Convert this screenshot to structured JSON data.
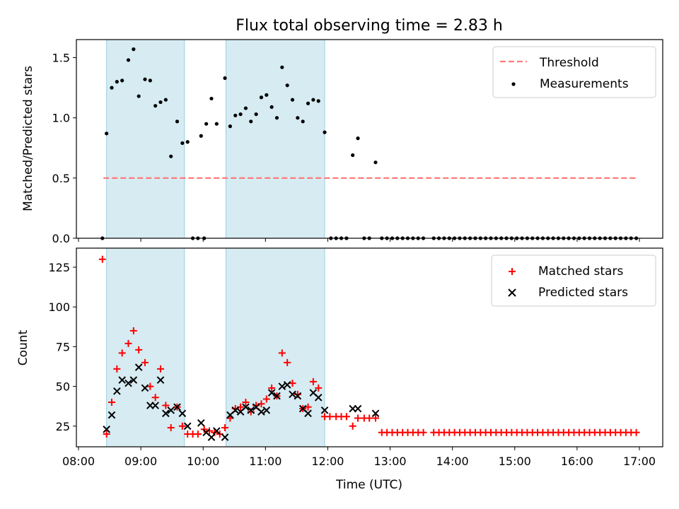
{
  "chart_data": [
    {
      "type": "scatter",
      "title": "Flux total observing time = 2.83 h",
      "xlabel": "",
      "ylabel": "Matched/Predicted stars",
      "xlim": [
        "08:00",
        "17:00"
      ],
      "ylim": [
        0,
        1.65
      ],
      "yticks": [
        0.0,
        0.5,
        1.0,
        1.5
      ],
      "ytick_labels": [
        "0.0",
        "0.5",
        "1.0",
        "1.5"
      ],
      "legend_position": "top-right",
      "grid": false,
      "shaded_intervals": [
        [
          "08:27",
          "09:42"
        ],
        [
          "10:22",
          "11:57"
        ]
      ],
      "threshold": {
        "name": "Threshold",
        "value": 0.5,
        "x_range": [
          "08:24",
          "16:58"
        ],
        "color": "#ff7b7b"
      },
      "series": [
        {
          "name": "Measurements",
          "color": "#000000",
          "points": [
            [
              "08:23",
              0.0
            ],
            [
              "08:27",
              0.87
            ],
            [
              "08:32",
              1.25
            ],
            [
              "08:37",
              1.3
            ],
            [
              "08:42",
              1.31
            ],
            [
              "08:48",
              1.48
            ],
            [
              "08:53",
              1.57
            ],
            [
              "08:58",
              1.18
            ],
            [
              "09:04",
              1.32
            ],
            [
              "09:09",
              1.31
            ],
            [
              "09:14",
              1.1
            ],
            [
              "09:19",
              1.13
            ],
            [
              "09:24",
              1.15
            ],
            [
              "09:29",
              0.68
            ],
            [
              "09:35",
              0.97
            ],
            [
              "09:40",
              0.79
            ],
            [
              "09:45",
              0.8
            ],
            [
              "09:50",
              0.0
            ],
            [
              "09:55",
              0.0
            ],
            [
              "10:01",
              0.0
            ],
            [
              "09:58",
              0.85
            ],
            [
              "10:03",
              0.95
            ],
            [
              "10:08",
              1.16
            ],
            [
              "10:13",
              0.95
            ],
            [
              "10:21",
              1.33
            ],
            [
              "10:26",
              0.93
            ],
            [
              "10:31",
              1.02
            ],
            [
              "10:36",
              1.03
            ],
            [
              "10:41",
              1.08
            ],
            [
              "10:46",
              0.97
            ],
            [
              "10:51",
              1.03
            ],
            [
              "10:56",
              1.17
            ],
            [
              "11:01",
              1.19
            ],
            [
              "11:06",
              1.09
            ],
            [
              "11:11",
              1.0
            ],
            [
              "11:16",
              1.42
            ],
            [
              "11:21",
              1.27
            ],
            [
              "11:26",
              1.15
            ],
            [
              "11:31",
              1.0
            ],
            [
              "11:36",
              0.97
            ],
            [
              "11:41",
              1.12
            ],
            [
              "11:46",
              1.15
            ],
            [
              "11:51",
              1.14
            ],
            [
              "11:57",
              0.88
            ],
            [
              "12:03",
              0.0
            ],
            [
              "12:08",
              0.0
            ],
            [
              "12:13",
              0.0
            ],
            [
              "12:18",
              0.0
            ],
            [
              "12:24",
              0.69
            ],
            [
              "12:29",
              0.83
            ],
            [
              "12:35",
              0.0
            ],
            [
              "12:40",
              0.0
            ],
            [
              "12:46",
              0.63
            ],
            [
              "12:52",
              0.0
            ],
            [
              "12:57",
              0.0
            ],
            [
              "13:02",
              0.0
            ],
            [
              "13:07",
              0.0
            ],
            [
              "13:12",
              0.0
            ],
            [
              "13:17",
              0.0
            ],
            [
              "13:22",
              0.0
            ],
            [
              "13:27",
              0.0
            ],
            [
              "13:32",
              0.0
            ],
            [
              "13:42",
              0.0
            ],
            [
              "13:47",
              0.0
            ],
            [
              "13:52",
              0.0
            ],
            [
              "13:57",
              0.0
            ],
            [
              "14:02",
              0.0
            ],
            [
              "14:07",
              0.0
            ],
            [
              "14:12",
              0.0
            ],
            [
              "14:17",
              0.0
            ],
            [
              "14:22",
              0.0
            ],
            [
              "14:27",
              0.0
            ],
            [
              "14:32",
              0.0
            ],
            [
              "14:37",
              0.0
            ],
            [
              "14:42",
              0.0
            ],
            [
              "14:47",
              0.0
            ],
            [
              "14:52",
              0.0
            ],
            [
              "14:57",
              0.0
            ],
            [
              "15:02",
              0.0
            ],
            [
              "15:07",
              0.0
            ],
            [
              "15:12",
              0.0
            ],
            [
              "15:17",
              0.0
            ],
            [
              "15:22",
              0.0
            ],
            [
              "15:27",
              0.0
            ],
            [
              "15:32",
              0.0
            ],
            [
              "15:37",
              0.0
            ],
            [
              "15:42",
              0.0
            ],
            [
              "15:47",
              0.0
            ],
            [
              "15:52",
              0.0
            ],
            [
              "15:57",
              0.0
            ],
            [
              "16:02",
              0.0
            ],
            [
              "16:07",
              0.0
            ],
            [
              "16:12",
              0.0
            ],
            [
              "16:17",
              0.0
            ],
            [
              "16:22",
              0.0
            ],
            [
              "16:27",
              0.0
            ],
            [
              "16:32",
              0.0
            ],
            [
              "16:37",
              0.0
            ],
            [
              "16:42",
              0.0
            ],
            [
              "16:47",
              0.0
            ],
            [
              "16:52",
              0.0
            ],
            [
              "16:57",
              0.0
            ]
          ]
        }
      ]
    },
    {
      "type": "scatter",
      "title": "",
      "xlabel": "Time (UTC)",
      "ylabel": "Count",
      "xlim": [
        "08:00",
        "17:00"
      ],
      "ylim": [
        12,
        137
      ],
      "yticks": [
        25,
        50,
        75,
        100,
        125
      ],
      "ytick_labels": [
        "25",
        "50",
        "75",
        "100",
        "125"
      ],
      "xticks": [
        "08:00",
        "09:00",
        "10:00",
        "11:00",
        "12:00",
        "13:00",
        "14:00",
        "15:00",
        "16:00",
        "17:00"
      ],
      "legend_position": "top-right",
      "grid": false,
      "shaded_intervals": [
        [
          "08:27",
          "09:42"
        ],
        [
          "10:22",
          "11:57"
        ]
      ],
      "series": [
        {
          "name": "Matched stars",
          "color": "#ff0000",
          "points": [
            [
              "08:23",
              130
            ],
            [
              "08:27",
              20
            ],
            [
              "08:32",
              40
            ],
            [
              "08:37",
              61
            ],
            [
              "08:42",
              71
            ],
            [
              "08:48",
              77
            ],
            [
              "08:53",
              85
            ],
            [
              "08:58",
              73
            ],
            [
              "09:04",
              65
            ],
            [
              "09:09",
              50
            ],
            [
              "09:14",
              43
            ],
            [
              "09:19",
              61
            ],
            [
              "09:24",
              38
            ],
            [
              "09:29",
              24
            ],
            [
              "09:35",
              37
            ],
            [
              "09:40",
              25
            ],
            [
              "09:45",
              20
            ],
            [
              "09:50",
              20
            ],
            [
              "09:55",
              20
            ],
            [
              "10:01",
              23
            ],
            [
              "10:06",
              22
            ],
            [
              "10:11",
              21
            ],
            [
              "10:16",
              20
            ],
            [
              "10:21",
              24
            ],
            [
              "10:26",
              30
            ],
            [
              "10:31",
              36
            ],
            [
              "10:36",
              37
            ],
            [
              "10:41",
              40
            ],
            [
              "10:46",
              34
            ],
            [
              "10:51",
              38
            ],
            [
              "10:56",
              39
            ],
            [
              "11:01",
              42
            ],
            [
              "11:06",
              49
            ],
            [
              "11:11",
              44
            ],
            [
              "11:16",
              71
            ],
            [
              "11:21",
              65
            ],
            [
              "11:26",
              52
            ],
            [
              "11:31",
              45
            ],
            [
              "11:36",
              36
            ],
            [
              "11:41",
              37
            ],
            [
              "11:46",
              53
            ],
            [
              "11:51",
              49
            ],
            [
              "11:57",
              31
            ],
            [
              "12:02",
              31
            ],
            [
              "12:08",
              31
            ],
            [
              "12:13",
              31
            ],
            [
              "12:18",
              31
            ],
            [
              "12:24",
              25
            ],
            [
              "12:29",
              30
            ],
            [
              "12:35",
              30
            ],
            [
              "12:40",
              30
            ],
            [
              "12:46",
              30
            ],
            [
              "12:52",
              21
            ],
            [
              "12:57",
              21
            ],
            [
              "13:02",
              21
            ],
            [
              "13:07",
              21
            ],
            [
              "13:12",
              21
            ],
            [
              "13:17",
              21
            ],
            [
              "13:22",
              21
            ],
            [
              "13:27",
              21
            ],
            [
              "13:32",
              21
            ],
            [
              "13:42",
              21
            ],
            [
              "13:47",
              21
            ],
            [
              "13:52",
              21
            ],
            [
              "13:57",
              21
            ],
            [
              "14:02",
              21
            ],
            [
              "14:07",
              21
            ],
            [
              "14:12",
              21
            ],
            [
              "14:17",
              21
            ],
            [
              "14:22",
              21
            ],
            [
              "14:27",
              21
            ],
            [
              "14:32",
              21
            ],
            [
              "14:37",
              21
            ],
            [
              "14:42",
              21
            ],
            [
              "14:47",
              21
            ],
            [
              "14:52",
              21
            ],
            [
              "14:57",
              21
            ],
            [
              "15:02",
              21
            ],
            [
              "15:07",
              21
            ],
            [
              "15:12",
              21
            ],
            [
              "15:17",
              21
            ],
            [
              "15:22",
              21
            ],
            [
              "15:27",
              21
            ],
            [
              "15:32",
              21
            ],
            [
              "15:37",
              21
            ],
            [
              "15:42",
              21
            ],
            [
              "15:47",
              21
            ],
            [
              "15:52",
              21
            ],
            [
              "15:57",
              21
            ],
            [
              "16:02",
              21
            ],
            [
              "16:07",
              21
            ],
            [
              "16:12",
              21
            ],
            [
              "16:17",
              21
            ],
            [
              "16:22",
              21
            ],
            [
              "16:27",
              21
            ],
            [
              "16:32",
              21
            ],
            [
              "16:37",
              21
            ],
            [
              "16:42",
              21
            ],
            [
              "16:47",
              21
            ],
            [
              "16:52",
              21
            ],
            [
              "16:57",
              21
            ]
          ]
        },
        {
          "name": "Predicted stars",
          "color": "#000000",
          "points": [
            [
              "08:27",
              23
            ],
            [
              "08:32",
              32
            ],
            [
              "08:37",
              47
            ],
            [
              "08:42",
              54
            ],
            [
              "08:48",
              52
            ],
            [
              "08:53",
              54
            ],
            [
              "08:58",
              62
            ],
            [
              "09:04",
              49
            ],
            [
              "09:09",
              38
            ],
            [
              "09:14",
              38
            ],
            [
              "09:19",
              54
            ],
            [
              "09:24",
              33
            ],
            [
              "09:29",
              35
            ],
            [
              "09:35",
              37
            ],
            [
              "09:40",
              33
            ],
            [
              "09:45",
              25
            ],
            [
              "09:58",
              27
            ],
            [
              "10:03",
              21
            ],
            [
              "10:08",
              18
            ],
            [
              "10:13",
              22
            ],
            [
              "10:21",
              18
            ],
            [
              "10:26",
              32
            ],
            [
              "10:31",
              35
            ],
            [
              "10:36",
              34
            ],
            [
              "10:41",
              37
            ],
            [
              "10:46",
              35
            ],
            [
              "10:51",
              37
            ],
            [
              "10:56",
              34
            ],
            [
              "11:01",
              35
            ],
            [
              "11:06",
              46
            ],
            [
              "11:11",
              44
            ],
            [
              "11:16",
              50
            ],
            [
              "11:21",
              51
            ],
            [
              "11:26",
              45
            ],
            [
              "11:31",
              44
            ],
            [
              "11:36",
              36
            ],
            [
              "11:41",
              33
            ],
            [
              "11:46",
              46
            ],
            [
              "11:51",
              43
            ],
            [
              "11:57",
              35
            ],
            [
              "12:24",
              36
            ],
            [
              "12:29",
              36
            ],
            [
              "12:46",
              33
            ]
          ]
        }
      ]
    }
  ]
}
